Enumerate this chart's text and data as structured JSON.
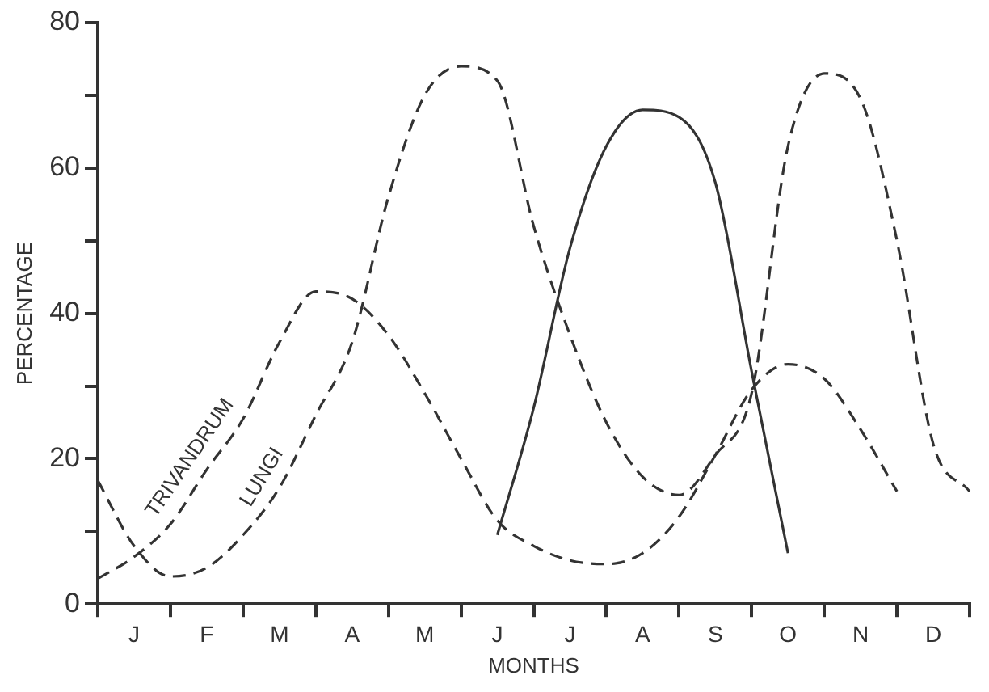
{
  "chart_data": {
    "type": "line",
    "xlabel": "MONTHS",
    "ylabel": "PERCENTAGE",
    "ylim": [
      0,
      80
    ],
    "categories": [
      null,
      "J",
      null,
      "F",
      null,
      "M",
      null,
      "A",
      null,
      "M",
      null,
      "J",
      null,
      "J",
      null,
      "A",
      null,
      "S",
      null,
      "O",
      null,
      "N",
      null,
      "D",
      null
    ],
    "yticks": [
      0,
      {
        "value": 10,
        "label": null
      },
      20,
      {
        "value": 30,
        "label": null
      },
      40,
      {
        "value": 50,
        "label": null
      },
      60,
      {
        "value": 70,
        "label": null
      },
      80
    ],
    "grid": false,
    "legend": false,
    "marker": "none",
    "series": [
      {
        "name": "TRIVANDRUM",
        "color": "#333333",
        "line_style": "dashed",
        "values": [
          3.5,
          6.5,
          11,
          18.5,
          25.5,
          36,
          43,
          42,
          37,
          29,
          20,
          11.5,
          8,
          6,
          5.5,
          7,
          12,
          20.5,
          29.5,
          33,
          31,
          24,
          15.5,
          null,
          null
        ]
      },
      {
        "name": "LUNGI",
        "color": "#333333",
        "line_style": "dashed",
        "values": [
          17,
          8,
          3.8,
          5,
          9.5,
          16,
          26,
          36,
          56,
          70,
          74,
          72,
          52,
          37,
          25,
          17.5,
          15,
          20.5,
          29,
          63,
          73,
          69.5,
          50,
          22,
          15.5
        ]
      },
      {
        "color": "#333333",
        "line_style": "solid",
        "values": [
          null,
          null,
          null,
          null,
          null,
          null,
          null,
          null,
          null,
          null,
          null,
          9.5,
          27,
          49,
          63,
          68,
          67,
          58,
          32,
          7,
          null,
          null,
          null,
          null,
          null
        ]
      }
    ]
  }
}
